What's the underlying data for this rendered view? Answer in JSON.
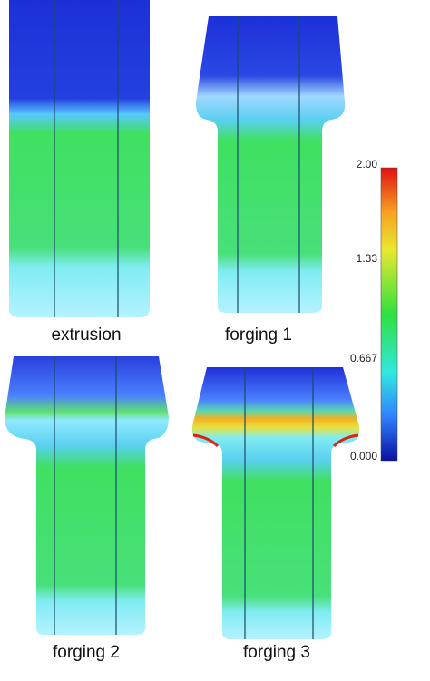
{
  "panels": [
    {
      "label": "extrusion"
    },
    {
      "label": "forging 1"
    },
    {
      "label": "forging 2"
    },
    {
      "label": "forging 3"
    }
  ],
  "colorbar": {
    "ticks": [
      "2.00",
      "1.33",
      "0.667",
      "0.000"
    ]
  }
}
